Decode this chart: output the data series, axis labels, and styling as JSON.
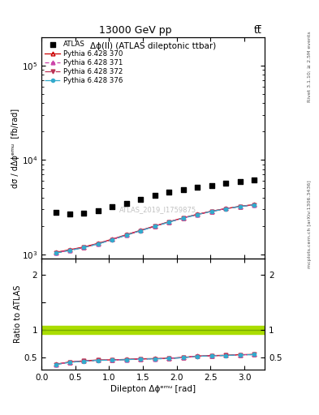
{
  "title_top": "13000 GeV pp",
  "title_right": "tt̅",
  "plot_title": "Δϕ(ll) (ATLAS dileptonic ttbar)",
  "watermark": "ATLAS_2019_I1759875",
  "xlabel": "Dilepton Δϕᵉᵐᵘ [rad]",
  "ylabel": "dσ / dΔϕᵉᵐᵘ  [fb/rad]",
  "ylabel_ratio": "Ratio to ATLAS",
  "right_label_bottom": "mcplots.cern.ch [arXiv:1306.3436]",
  "right_label_top": "Rivet 3.1.10; ≥ 2.5M events",
  "atlas_x": [
    0.2094,
    0.4189,
    0.6283,
    0.8378,
    1.0472,
    1.2566,
    1.4661,
    1.6755,
    1.885,
    2.0944,
    2.3038,
    2.5133,
    2.7227,
    2.9322,
    3.1416
  ],
  "atlas_y": [
    2800,
    2700,
    2750,
    2900,
    3200,
    3500,
    3800,
    4200,
    4600,
    4900,
    5100,
    5400,
    5700,
    5900,
    6100
  ],
  "py370_x": [
    0.2094,
    0.4189,
    0.6283,
    0.8378,
    1.0472,
    1.2566,
    1.4661,
    1.6755,
    1.885,
    2.0944,
    2.3038,
    2.5133,
    2.7227,
    2.9322,
    3.1416
  ],
  "py370_y": [
    1050,
    1120,
    1200,
    1310,
    1450,
    1620,
    1800,
    2000,
    2220,
    2440,
    2660,
    2870,
    3060,
    3230,
    3370
  ],
  "py371_x": [
    0.2094,
    0.4189,
    0.6283,
    0.8378,
    1.0472,
    1.2566,
    1.4661,
    1.6755,
    1.885,
    2.0944,
    2.3038,
    2.5133,
    2.7227,
    2.9322,
    3.1416
  ],
  "py371_y": [
    1040,
    1110,
    1190,
    1300,
    1440,
    1610,
    1790,
    1990,
    2210,
    2430,
    2650,
    2860,
    3050,
    3220,
    3360
  ],
  "py372_x": [
    0.2094,
    0.4189,
    0.6283,
    0.8378,
    1.0472,
    1.2566,
    1.4661,
    1.6755,
    1.885,
    2.0944,
    2.3038,
    2.5133,
    2.7227,
    2.9322,
    3.1416
  ],
  "py372_y": [
    1035,
    1105,
    1185,
    1295,
    1435,
    1605,
    1785,
    1985,
    2205,
    2425,
    2645,
    2855,
    3045,
    3215,
    3355
  ],
  "py376_x": [
    0.2094,
    0.4189,
    0.6283,
    0.8378,
    1.0472,
    1.2566,
    1.4661,
    1.6755,
    1.885,
    2.0944,
    2.3038,
    2.5133,
    2.7227,
    2.9322,
    3.1416
  ],
  "py376_y": [
    1030,
    1100,
    1180,
    1290,
    1430,
    1600,
    1780,
    1980,
    2200,
    2420,
    2640,
    2850,
    3040,
    3210,
    3350
  ],
  "color_370": "#cc0000",
  "color_371": "#cc44aa",
  "color_372": "#bb3355",
  "color_376": "#33aacc",
  "ylim_main": [
    900,
    200000
  ],
  "ylim_ratio": [
    0.28,
    2.3
  ],
  "xlim": [
    0.0,
    3.3
  ],
  "ratio_band_lo": 0.93,
  "ratio_band_hi": 1.07,
  "ratio_band_color": "#aadd00",
  "ratio_line_color": "#77aa00",
  "bg_color": "#ffffff"
}
